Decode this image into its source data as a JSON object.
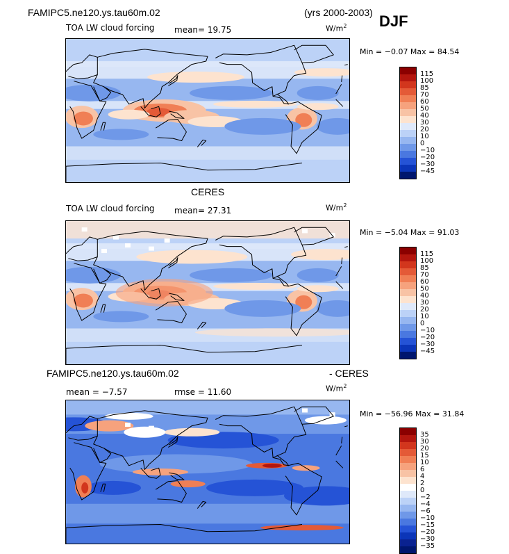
{
  "header": {
    "case_label": "FAMIPC5.ne120.ys.tau60m.02",
    "years": "(yrs 2000-2003)",
    "season": "DJF"
  },
  "panels": [
    {
      "subtitle": "TOA LW cloud forcing",
      "mean_text": "mean=  19.75",
      "unit": "W/m",
      "unit_sup": "2",
      "minmax_text": "Min =  −0.07  Max =  84.54",
      "title": ""
    },
    {
      "title": "CERES",
      "subtitle": "TOA LW cloud forcing",
      "mean_text": "mean=  27.31",
      "unit": "W/m",
      "unit_sup": "2",
      "minmax_text": "Min =  −5.04  Max =  91.03"
    },
    {
      "title_left": "FAMIPC5.ne120.ys.tau60m.02",
      "title_right": "- CERES",
      "mean_text": "mean =   −7.57",
      "rmse_text": "rmse =   11.60",
      "unit": "W/m",
      "unit_sup": "2",
      "minmax_text": "Min =  −56.96  Max =  31.84"
    }
  ],
  "colorbars": [
    {
      "labels": [
        "115",
        "100",
        "85",
        "70",
        "60",
        "50",
        "40",
        "30",
        "20",
        "10",
        "0",
        "−10",
        "−20",
        "−30",
        "−45"
      ],
      "colors": [
        "#8b0000",
        "#b3160e",
        "#d2361d",
        "#e45a37",
        "#f07f55",
        "#f6a27d",
        "#f8c3a5",
        "#fde3cf",
        "#dfe9fa",
        "#bcd2f7",
        "#97b7f0",
        "#6f98e8",
        "#4a78e0",
        "#2553d6",
        "#0b35b8",
        "#00166e"
      ]
    },
    {
      "labels": [
        "115",
        "100",
        "85",
        "70",
        "60",
        "50",
        "40",
        "30",
        "20",
        "10",
        "0",
        "−10",
        "−20",
        "−30",
        "−45"
      ],
      "colors": [
        "#8b0000",
        "#b3160e",
        "#d2361d",
        "#e45a37",
        "#f07f55",
        "#f6a27d",
        "#f8c3a5",
        "#fde3cf",
        "#dfe9fa",
        "#bcd2f7",
        "#97b7f0",
        "#6f98e8",
        "#4a78e0",
        "#2553d6",
        "#0b35b8",
        "#00166e"
      ]
    },
    {
      "labels": [
        "35",
        "30",
        "20",
        "15",
        "10",
        "6",
        "4",
        "2",
        "0",
        "−2",
        "−4",
        "−6",
        "−10",
        "−15",
        "−20",
        "−30",
        "−35"
      ],
      "colors": [
        "#8b0000",
        "#b3160e",
        "#d2361d",
        "#e45a37",
        "#f07f55",
        "#f6a27d",
        "#f8c3a5",
        "#fde3cf",
        "#ffffff",
        "#dfe9fa",
        "#bcd2f7",
        "#97b7f0",
        "#6f98e8",
        "#4a78e0",
        "#2553d6",
        "#0b35b8",
        "#0a2290",
        "#00166e"
      ]
    }
  ],
  "chart_data": [
    {
      "type": "heatmap",
      "title": "FAMIPC5.ne120.ys.tau60m.02",
      "subtitle": "TOA LW cloud forcing",
      "units": "W/m2",
      "mean": 19.75,
      "min": -0.07,
      "max": 84.54,
      "contour_levels": [
        -45,
        -30,
        -20,
        -10,
        0,
        10,
        20,
        30,
        40,
        50,
        60,
        70,
        85,
        100,
        115
      ]
    },
    {
      "type": "heatmap",
      "title": "CERES",
      "subtitle": "TOA LW cloud forcing",
      "units": "W/m2",
      "mean": 27.31,
      "min": -5.04,
      "max": 91.03,
      "contour_levels": [
        -45,
        -30,
        -20,
        -10,
        0,
        10,
        20,
        30,
        40,
        50,
        60,
        70,
        85,
        100,
        115
      ]
    },
    {
      "type": "heatmap",
      "title": "FAMIPC5.ne120.ys.tau60m.02 - CERES",
      "units": "W/m2",
      "mean": -7.57,
      "rmse": 11.6,
      "min": -56.96,
      "max": 31.84,
      "contour_levels": [
        -35,
        -30,
        -20,
        -15,
        -10,
        -6,
        -4,
        -2,
        0,
        2,
        4,
        6,
        10,
        15,
        20,
        30,
        35
      ]
    }
  ]
}
